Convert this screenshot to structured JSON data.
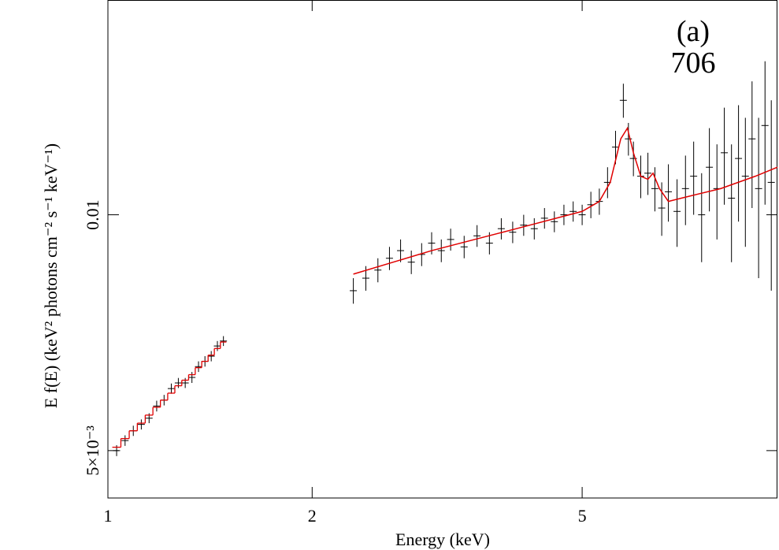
{
  "chart_data": {
    "type": "scatter",
    "annotations": [
      "(a)",
      "706"
    ],
    "xlabel": "Energy (keV)",
    "ylabel": "E f(E) (keV² photons cm⁻² s⁻¹ keV⁻¹)",
    "xscale": "log",
    "yscale": "log",
    "xlim": [
      1,
      9.7
    ],
    "xticks": [
      1,
      2,
      5
    ],
    "ylim": [
      0.00435,
      0.0188
    ],
    "yticks": [
      {
        "value": 0.005,
        "label": "5×10⁻³"
      },
      0.01
    ],
    "series": [
      {
        "type": "errorbar",
        "color": "#000000",
        "x": [
          1.03,
          1.06,
          1.09,
          1.12,
          1.15,
          1.18,
          1.21,
          1.24,
          1.27,
          1.3,
          1.33,
          1.36,
          1.39,
          1.42,
          1.45,
          1.48
        ],
        "values": [
          0.005,
          0.00515,
          0.0053,
          0.0054,
          0.0055,
          0.0057,
          0.0058,
          0.006,
          0.0061,
          0.0061,
          0.0062,
          0.0064,
          0.0065,
          0.0066,
          0.0068,
          0.0069
        ],
        "errors": [
          8e-05,
          8e-05,
          8e-05,
          8e-05,
          8e-05,
          9e-05,
          9e-05,
          9e-05,
          9e-05,
          9e-05,
          0.0001,
          0.0001,
          0.0001,
          0.0001,
          0.0001,
          0.0001
        ]
      },
      {
        "type": "errorbar",
        "color": "#000000",
        "x": [
          2.3,
          2.4,
          2.5,
          2.6,
          2.7,
          2.8,
          2.9,
          3.0,
          3.1,
          3.2,
          3.35,
          3.5,
          3.65,
          3.8,
          3.95,
          4.1,
          4.25,
          4.4,
          4.55,
          4.7,
          4.85,
          5.0,
          5.15,
          5.3,
          5.45,
          5.6,
          5.75,
          5.85,
          5.95,
          6.1,
          6.25,
          6.4,
          6.55,
          6.7,
          6.9,
          7.1,
          7.3,
          7.5,
          7.7,
          7.9,
          8.1,
          8.3,
          8.5,
          8.7,
          8.9,
          9.1,
          9.3,
          9.5
        ],
        "values": [
          0.008,
          0.0083,
          0.0085,
          0.0088,
          0.009,
          0.0087,
          0.0089,
          0.0092,
          0.009,
          0.0093,
          0.0091,
          0.0094,
          0.0092,
          0.0096,
          0.0095,
          0.0097,
          0.0096,
          0.0099,
          0.0098,
          0.01,
          0.0101,
          0.01,
          0.0103,
          0.0104,
          0.011,
          0.0122,
          0.014,
          0.0125,
          0.0118,
          0.0112,
          0.0113,
          0.0108,
          0.0102,
          0.0107,
          0.0101,
          0.0108,
          0.0112,
          0.01,
          0.0115,
          0.0108,
          0.012,
          0.0105,
          0.0118,
          0.0112,
          0.0125,
          0.0108,
          0.013,
          0.011
        ],
        "errors": [
          0.0003,
          0.0003,
          0.0003,
          0.0003,
          0.0003,
          0.0003,
          0.0003,
          0.0003,
          0.0003,
          0.0003,
          0.0003,
          0.0003,
          0.0003,
          0.0003,
          0.0003,
          0.0003,
          0.0003,
          0.0003,
          0.0003,
          0.0003,
          0.0003,
          0.0003,
          0.0004,
          0.0004,
          0.0005,
          0.0006,
          0.0007,
          0.0006,
          0.0006,
          0.0007,
          0.0007,
          0.0007,
          0.0008,
          0.0009,
          0.001,
          0.0011,
          0.0012,
          0.0013,
          0.0014,
          0.0015,
          0.0017,
          0.0018,
          0.002,
          0.0021,
          0.0023,
          0.0025,
          0.0027,
          0.003
        ]
      },
      {
        "type": "step",
        "color": "#e00000",
        "x": [
          1.03,
          1.06,
          1.09,
          1.12,
          1.15,
          1.18,
          1.21,
          1.24,
          1.27,
          1.3,
          1.33,
          1.36,
          1.39,
          1.42,
          1.45,
          1.48
        ],
        "values": [
          0.00505,
          0.00518,
          0.0053,
          0.00542,
          0.00555,
          0.00568,
          0.0058,
          0.00592,
          0.00605,
          0.00615,
          0.00625,
          0.00638,
          0.0065,
          0.00662,
          0.00675,
          0.00688
        ]
      },
      {
        "type": "line",
        "color": "#e00000",
        "x": [
          2.3,
          3,
          4,
          5,
          5.3,
          5.5,
          5.7,
          5.83,
          5.95,
          6.1,
          6.25,
          6.36,
          6.5,
          6.7,
          7,
          8,
          9,
          9.7
        ],
        "values": [
          0.0084,
          0.009,
          0.0096,
          0.0101,
          0.0104,
          0.011,
          0.0125,
          0.0129,
          0.012,
          0.0112,
          0.0111,
          0.0113,
          0.0108,
          0.0104,
          0.0105,
          0.0108,
          0.0112,
          0.0115
        ]
      }
    ]
  }
}
